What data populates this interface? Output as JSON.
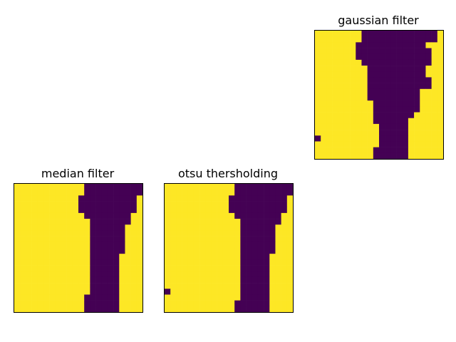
{
  "chart_data": [
    {
      "type": "heatmap",
      "title": "gaussian filter",
      "colors": {
        "high": "#fde725",
        "low": "#440154"
      },
      "grid": [
        "1111111100000000000001",
        "1111111100000000000001",
        "1111111000000000000111",
        "1111111000000000000011",
        "1111111000000000000011",
        "1111111100000000000011",
        "1111111110000000000111",
        "1111111110000000000111",
        "1111111110000000000011",
        "1111111110000000000011",
        "1111111110000000001111",
        "1111111110000000001111",
        "1111111111000000001111",
        "1111111111000000001111",
        "1111111111000000011111",
        "1111111111000000111111",
        "1111111111100000111111",
        "1111111111100000111111",
        "0111111111100000111111",
        "1111111111100000111111",
        "1111111111000000111111",
        "1111111111000000111111"
      ]
    },
    {
      "type": "heatmap",
      "title": "median filter",
      "colors": {
        "high": "#fde725",
        "low": "#440154"
      },
      "grid": [
        "1111111111110000000000",
        "1111111111110000000000",
        "1111111111100000000001",
        "1111111111100000000001",
        "1111111111100000000001",
        "1111111111110000000011",
        "1111111111111000000011",
        "1111111111111000000111",
        "1111111111111000000111",
        "1111111111111000000111",
        "1111111111111000000111",
        "1111111111111000000111",
        "1111111111111000001111",
        "1111111111111000001111",
        "1111111111111000001111",
        "1111111111111000001111",
        "1111111111111000001111",
        "1111111111111000001111",
        "1111111111111000001111",
        "1111111111110000001111",
        "1111111111110000001111",
        "1111111111110000001111"
      ]
    },
    {
      "type": "heatmap",
      "title": "otsu thersholding",
      "colors": {
        "high": "#fde725",
        "low": "#440154"
      },
      "grid": [
        "1111111111110000000000",
        "1111111111110000000000",
        "1111111111100000000001",
        "1111111111100000000001",
        "1111111111100000000001",
        "1111111111110000000011",
        "1111111111111000000011",
        "1111111111111000000111",
        "1111111111111000000111",
        "1111111111111000000111",
        "1111111111111000000111",
        "1111111111111000000111",
        "1111111111111000001111",
        "1111111111111000001111",
        "1111111111111000001111",
        "1111111111111000001111",
        "1111111111111000001111",
        "1111111111111000001111",
        "0111111111111000001111",
        "1111111111111000001111",
        "1111111111110000001111",
        "1111111111110000001111"
      ]
    }
  ]
}
